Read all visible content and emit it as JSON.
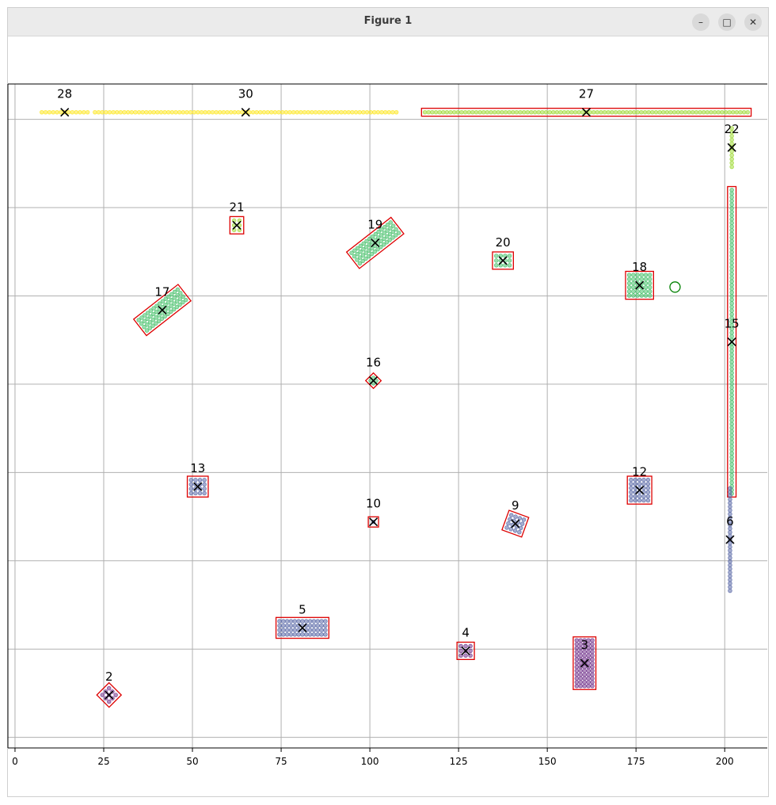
{
  "window": {
    "title": "Figure 1",
    "minimize_icon": "minimize-icon",
    "maximize_icon": "maximize-icon",
    "close_icon": "close-icon",
    "minimize_glyph": "–",
    "maximize_glyph": "□",
    "close_glyph": "✕"
  },
  "chart_data": {
    "type": "scatter",
    "title": "",
    "xlabel": "",
    "ylabel": "",
    "xlim": [
      -2,
      212
    ],
    "ylim": [
      -3,
      185
    ],
    "xticks": [
      0,
      25,
      50,
      75,
      100,
      125,
      150,
      175,
      200
    ],
    "xtick_labels": [
      "0",
      "25",
      "50",
      "75",
      "100",
      "125",
      "150",
      "175",
      "200"
    ],
    "ygrid": [
      0,
      25,
      50,
      75,
      100,
      125,
      150,
      175
    ],
    "grid": true,
    "legend": "none",
    "colors": {
      "yellow": "#fde725",
      "lightgreen": "#a0da39",
      "teal": "#4ac16d",
      "blue": "#5b6aa7",
      "purple": "#72348c",
      "box": "#dd0000",
      "centroid": "#000000",
      "marker_circle": "#008000"
    },
    "clusters": [
      {
        "label": "28",
        "cx": 14,
        "cy": 177,
        "w": 14,
        "h": 1,
        "angle": 0,
        "color": "yellow",
        "box": false
      },
      {
        "label": "30",
        "cx": 65,
        "cy": 177,
        "w": 86,
        "h": 1,
        "angle": 0,
        "color": "yellow",
        "box": false
      },
      {
        "label": "27",
        "cx": 161,
        "cy": 177,
        "w": 92,
        "h": 1.2,
        "angle": 0,
        "color": "lightgreen",
        "box": true
      },
      {
        "label": "22",
        "cx": 202,
        "cy": 167,
        "w": 1.2,
        "h": 12,
        "angle": 0,
        "color": "lightgreen",
        "box": false
      },
      {
        "label": "21",
        "cx": 62.5,
        "cy": 145,
        "w": 3,
        "h": 4,
        "angle": 0,
        "color": "lightgreen",
        "box": true
      },
      {
        "label": "19",
        "cx": 101.5,
        "cy": 140,
        "w": 15,
        "h": 5,
        "angle": -38,
        "color": "teal",
        "box": true
      },
      {
        "label": "20",
        "cx": 137.5,
        "cy": 135,
        "w": 5,
        "h": 4,
        "angle": 0,
        "color": "teal",
        "box": true
      },
      {
        "label": "18",
        "cx": 176,
        "cy": 128,
        "w": 7,
        "h": 7,
        "angle": 0,
        "color": "teal",
        "box": true
      },
      {
        "label": "17",
        "cx": 41.5,
        "cy": 121,
        "w": 15,
        "h": 5,
        "angle": -38,
        "color": "teal",
        "box": true
      },
      {
        "label": "15",
        "cx": 202,
        "cy": 112,
        "w": 1.5,
        "h": 87,
        "angle": 0,
        "color": "teal",
        "box": true
      },
      {
        "label": "16",
        "cx": 101,
        "cy": 101,
        "w": 2.2,
        "h": 2.2,
        "angle": 45,
        "color": "teal",
        "box": true
      },
      {
        "label": "13",
        "cx": 51.5,
        "cy": 71,
        "w": 5,
        "h": 5,
        "angle": 0,
        "color": "blue",
        "box": true
      },
      {
        "label": "12",
        "cx": 176,
        "cy": 70,
        "w": 6,
        "h": 7,
        "angle": 0,
        "color": "blue",
        "box": true
      },
      {
        "label": "10",
        "cx": 101,
        "cy": 61,
        "w": 2,
        "h": 2,
        "angle": 0,
        "color": "blue",
        "box": true
      },
      {
        "label": "9",
        "cx": 141,
        "cy": 60.5,
        "w": 5,
        "h": 5,
        "angle": 20,
        "color": "blue",
        "box": true
      },
      {
        "label": "6",
        "cx": 201.5,
        "cy": 56,
        "w": 1,
        "h": 30,
        "angle": 0,
        "color": "blue",
        "box": false
      },
      {
        "label": "5",
        "cx": 81,
        "cy": 31,
        "w": 14,
        "h": 5,
        "angle": 0,
        "color": "blue",
        "box": true
      },
      {
        "label": "4",
        "cx": 127,
        "cy": 24.5,
        "w": 4,
        "h": 4,
        "angle": 0,
        "color": "purple",
        "box": true
      },
      {
        "label": "3",
        "cx": 160.5,
        "cy": 21,
        "w": 5.5,
        "h": 14,
        "angle": 0,
        "color": "purple",
        "box": true
      },
      {
        "label": "2",
        "cx": 26.5,
        "cy": 12,
        "w": 4,
        "h": 4,
        "angle": 45,
        "color": "purple",
        "box": true
      }
    ],
    "extra_markers": [
      {
        "type": "circle",
        "x": 186,
        "y": 127.5,
        "color": "marker_circle"
      }
    ]
  }
}
